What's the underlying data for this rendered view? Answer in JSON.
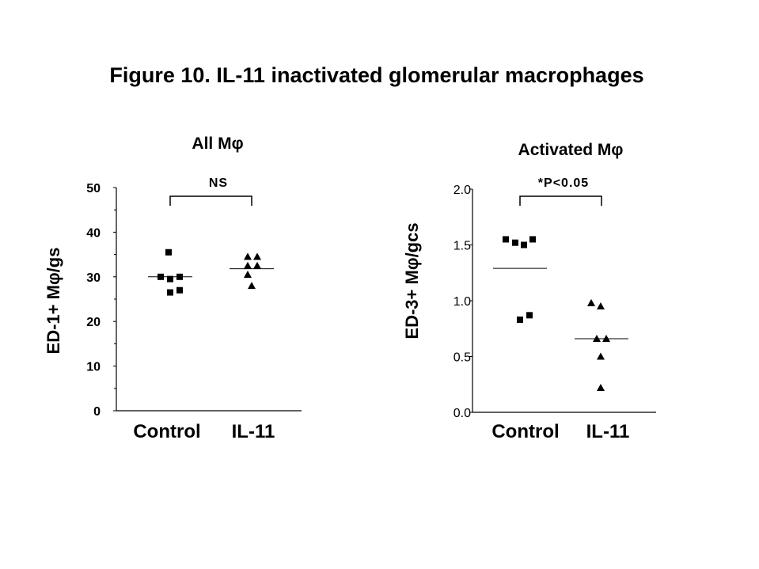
{
  "figure_title": "Figure 10. IL-11 inactivated glomerular macrophages",
  "chart_data": [
    {
      "type": "scatter",
      "title": "All Mφ",
      "ylabel": "ED-1+ Mφ/gs",
      "categories": [
        "Control",
        "IL-11"
      ],
      "ylim": [
        0,
        50
      ],
      "yticks": [
        "0",
        "10",
        "20",
        "30",
        "40",
        "50"
      ],
      "ytick_values": [
        0,
        10,
        20,
        30,
        40,
        50
      ],
      "significance": "NS",
      "series": [
        {
          "category": "Control",
          "marker": "square",
          "values": [
            35.5,
            30,
            29.5,
            30,
            26.5,
            27
          ],
          "mean": 30
        },
        {
          "category": "IL-11",
          "marker": "triangle",
          "values": [
            34.5,
            34.5,
            32.5,
            32.5,
            30.5,
            28
          ],
          "mean": 31.8
        }
      ]
    },
    {
      "type": "scatter",
      "title": "Activated Mφ",
      "ylabel": "ED-3+ Mφ/gcs",
      "categories": [
        "Control",
        "IL-11"
      ],
      "ylim": [
        0,
        2.0
      ],
      "yticks": [
        "0.0",
        "0.5",
        "1.0",
        "1.5",
        "2.0"
      ],
      "ytick_values": [
        0,
        0.5,
        1.0,
        1.5,
        2.0
      ],
      "significance": "*P<0.05",
      "series": [
        {
          "category": "Control",
          "marker": "square",
          "values": [
            1.55,
            1.52,
            1.5,
            1.55,
            0.83,
            0.87
          ],
          "mean": 1.29
        },
        {
          "category": "IL-11",
          "marker": "triangle",
          "values": [
            0.98,
            0.95,
            0.66,
            0.66,
            0.5,
            0.22
          ],
          "mean": 0.66
        }
      ]
    }
  ]
}
